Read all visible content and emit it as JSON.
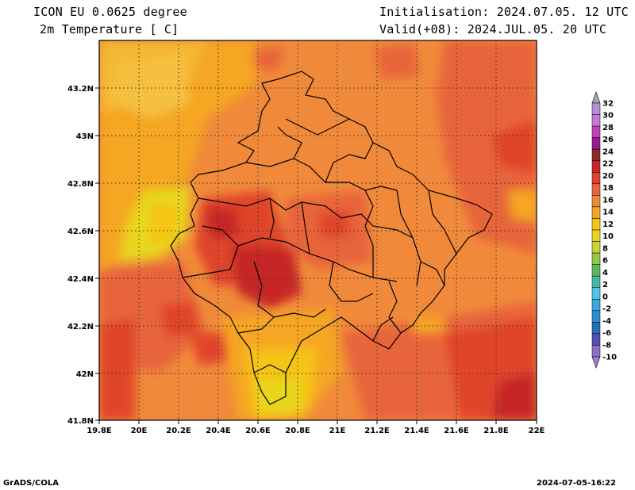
{
  "header": {
    "model": "ICON EU 0.0625 degree",
    "variable": "2m Temperature [ C]",
    "init": "Initialisation: 2024.07.05. 12 UTC",
    "valid": "Valid(+08): 2024.JUL.05. 20 UTC"
  },
  "axes": {
    "x_ticks": [
      "19.8E",
      "20E",
      "20.2E",
      "20.4E",
      "20.6E",
      "20.8E",
      "21E",
      "21.2E",
      "21.4E",
      "21.6E",
      "21.8E",
      "22E"
    ],
    "y_ticks": [
      "43.2N",
      "43N",
      "42.8N",
      "42.6N",
      "42.4N",
      "42.2N",
      "42N",
      "41.8N"
    ]
  },
  "colorbar": {
    "labels": [
      "32",
      "30",
      "28",
      "26",
      "24",
      "22",
      "20",
      "18",
      "16",
      "14",
      "12",
      "10",
      "8",
      "6",
      "4",
      "2",
      "0",
      "-2",
      "-4",
      "-6",
      "-8",
      "-10"
    ],
    "colors": [
      "#b38fd6",
      "#c878d8",
      "#c040c0",
      "#a01890",
      "#8b2a2a",
      "#c62828",
      "#e0442c",
      "#e8653a",
      "#f08a3a",
      "#f5a623",
      "#f5c518",
      "#e8d61a",
      "#c8d435",
      "#92c84a",
      "#5cb85c",
      "#48b8a0",
      "#4fc3e8",
      "#3aa8e0",
      "#2b8fd0",
      "#2470b8",
      "#5050b0",
      "#8a70c8"
    ]
  },
  "footer": {
    "left": "GrADS/COLA",
    "right": "2024-07-05-16:22"
  }
}
